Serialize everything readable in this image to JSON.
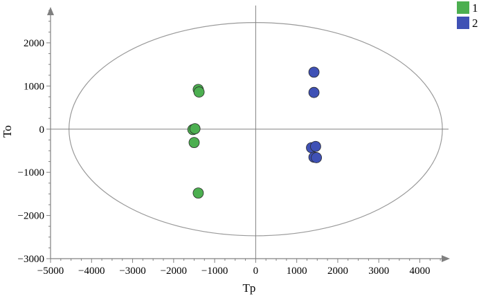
{
  "chart_data": {
    "type": "scatter",
    "xlabel": "Tp",
    "ylabel": "To",
    "xlim": [
      -5000,
      4700
    ],
    "ylim": [
      -3000,
      2800
    ],
    "x_ticks": [
      -5000,
      -4000,
      -3000,
      -2000,
      -1000,
      0,
      1000,
      2000,
      3000,
      4000
    ],
    "y_ticks": [
      -3000,
      -2000,
      -1000,
      0,
      1000,
      2000
    ],
    "x_tick_labels": [
      "−5000",
      "−4000",
      "−3000",
      "−2000",
      "−1000",
      "0",
      "1000",
      "2000",
      "3000",
      "4000"
    ],
    "y_tick_labels": [
      "−3000",
      "−2000",
      "−1000",
      "0",
      "1000",
      "2000"
    ],
    "grid": false,
    "legend_position": "top-right",
    "ellipse": {
      "cx": 0,
      "cy": 0,
      "rx": 4550,
      "ry": 2470,
      "color": "#999999"
    },
    "series": [
      {
        "name": "1",
        "color": "#4caf50",
        "points": [
          {
            "x": -1400,
            "y": 920
          },
          {
            "x": -1380,
            "y": 860
          },
          {
            "x": -1530,
            "y": -10
          },
          {
            "x": -1480,
            "y": 10
          },
          {
            "x": -1500,
            "y": -310
          },
          {
            "x": -1400,
            "y": -1480
          }
        ]
      },
      {
        "name": "2",
        "color": "#3f51b5",
        "points": [
          {
            "x": 1420,
            "y": 1320
          },
          {
            "x": 1420,
            "y": 850
          },
          {
            "x": 1360,
            "y": -430
          },
          {
            "x": 1460,
            "y": -400
          },
          {
            "x": 1420,
            "y": -650
          },
          {
            "x": 1480,
            "y": -660
          }
        ]
      }
    ]
  }
}
